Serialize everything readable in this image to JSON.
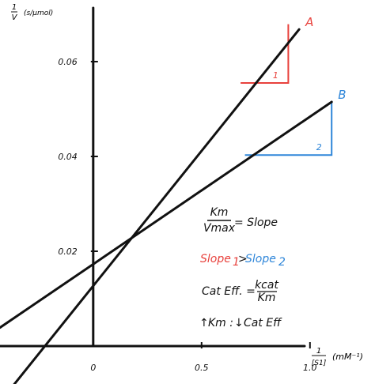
{
  "chart_data": {
    "type": "line",
    "xlabel": "1/[S1] (mM⁻¹)",
    "ylabel": "1/V (s/μmol)",
    "xlim": [
      -0.43,
      1.3
    ],
    "ylim": [
      -0.008,
      0.073
    ],
    "x_ticks": [
      {
        "value": 0,
        "label": "0"
      },
      {
        "value": 0.5,
        "label": "0.5"
      },
      {
        "value": 1.0,
        "label": "1.0"
      }
    ],
    "y_ticks": [
      {
        "value": 0.02,
        "label": "0.02"
      },
      {
        "value": 0.04,
        "label": "0.04"
      },
      {
        "value": 0.06,
        "label": "0.06"
      }
    ],
    "series": [
      {
        "name": "A",
        "color": "#111111",
        "x": [
          -0.43,
          0.95
        ],
        "y": [
          -0.0118,
          0.0668
        ]
      },
      {
        "name": "B",
        "color": "#111111",
        "x": [
          -0.43,
          1.1
        ],
        "y": [
          0.0039,
          0.0515
        ]
      }
    ],
    "slope_triangles": [
      {
        "series": "A",
        "label": "1",
        "color": "#e8413c",
        "x0": 0.68,
        "x1": 0.9,
        "y_low": 0.0555,
        "y_high": 0.0679
      },
      {
        "series": "B",
        "label": "2",
        "color": "#2f86d9",
        "x0": 0.7,
        "x1": 1.1,
        "y_low": 0.0403,
        "y_high": 0.0515
      }
    ],
    "annotations": {
      "km_vmax_num": "Km",
      "km_vmax_den": "Vmax",
      "slope_eq": "= Slope",
      "slope1": "Slope",
      "slope1_sub": "1",
      "gt": ">",
      "slope2": "Slope",
      "slope2_sub": "2",
      "cat_eff": "Cat Eff. =",
      "kcat": "kcat",
      "km_den": "Km",
      "rule_up": "↑",
      "rule_km": "Km :",
      "rule_down": "↓",
      "rule_cat": "Cat Eff"
    },
    "colors": {
      "red": "#e8413c",
      "blue": "#2f86d9",
      "ink": "#111111"
    }
  }
}
